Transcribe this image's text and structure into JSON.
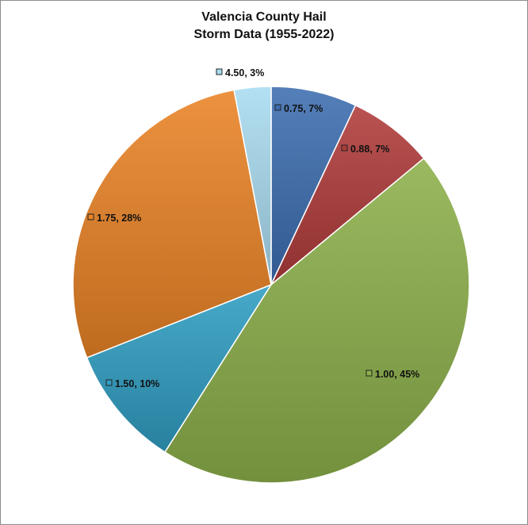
{
  "chart_data": {
    "type": "pie",
    "title": [
      "Valencia County Hail",
      "Storm Data (1955-2022)"
    ],
    "slices": [
      {
        "category": "0.75",
        "percent": 7,
        "label": "0.75, 7%",
        "color": "#3D6DB0"
      },
      {
        "category": "0.88",
        "percent": 7,
        "label": "0.88, 7%",
        "color": "#B03B3A"
      },
      {
        "category": "1.00",
        "percent": 45,
        "label": "1.00, 45%",
        "color": "#8CB04A"
      },
      {
        "category": "1.50",
        "percent": 10,
        "label": "1.50, 10%",
        "color": "#2F9DC2"
      },
      {
        "category": "1.75",
        "percent": 28,
        "label": "1.75, 28%",
        "color": "#E98326"
      },
      {
        "category": "4.50",
        "percent": 3,
        "label": "4.50, 3%",
        "color": "#A9DCF0"
      }
    ],
    "legend": "none",
    "start_angle": "12 o'clock",
    "direction": "clockwise"
  }
}
